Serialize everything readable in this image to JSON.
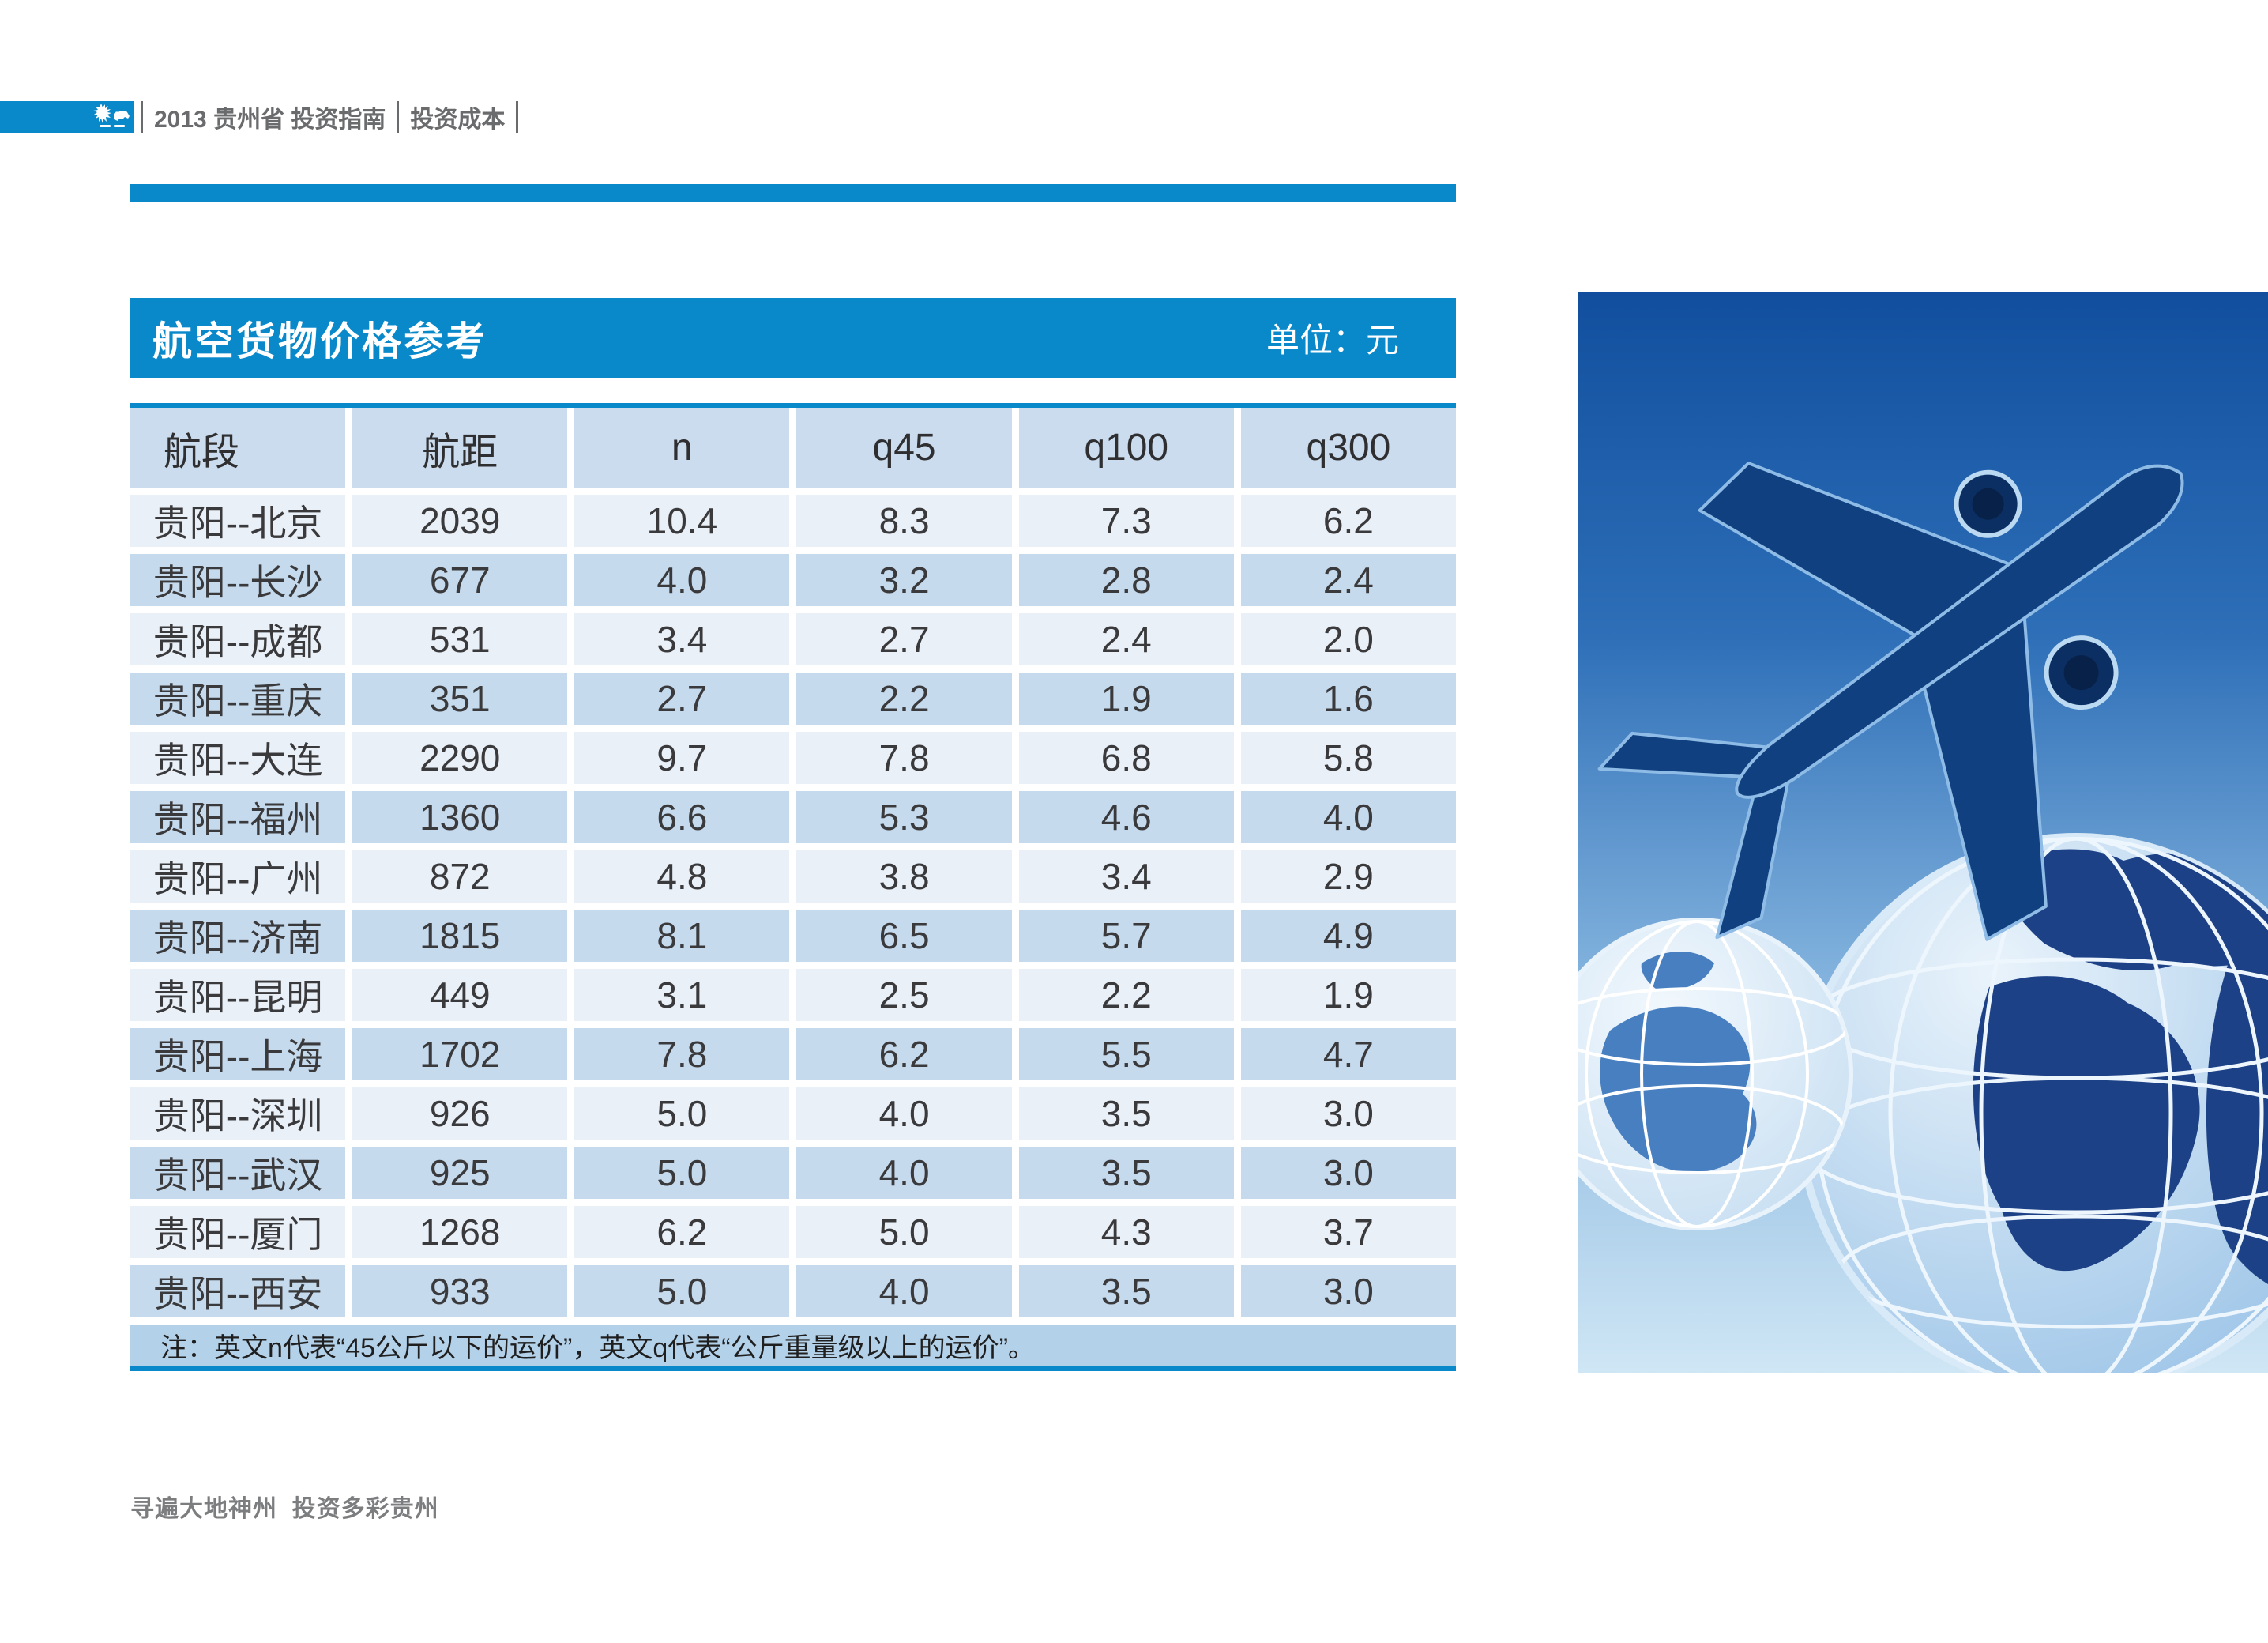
{
  "colors": {
    "brand": "#0988ca",
    "hdr-cell": "#cbdcee",
    "row-light": "#e9f0f8",
    "row-dark": "#c6daee",
    "note-bg": "#b4d1ea"
  },
  "header": {
    "left_label": "2013 贵州省 投资指南",
    "right_label": "投资成本"
  },
  "table": {
    "title": "航空货物价格参考",
    "unit": "单位：元",
    "columns": [
      "航段",
      "航距",
      "n",
      "q45",
      "q100",
      "q300"
    ],
    "rows": [
      [
        "贵阳--北京",
        "2039",
        "10.4",
        "8.3",
        "7.3",
        "6.2"
      ],
      [
        "贵阳--长沙",
        "677",
        "4.0",
        "3.2",
        "2.8",
        "2.4"
      ],
      [
        "贵阳--成都",
        "531",
        "3.4",
        "2.7",
        "2.4",
        "2.0"
      ],
      [
        "贵阳--重庆",
        "351",
        "2.7",
        "2.2",
        "1.9",
        "1.6"
      ],
      [
        "贵阳--大连",
        "2290",
        "9.7",
        "7.8",
        "6.8",
        "5.8"
      ],
      [
        "贵阳--福州",
        "1360",
        "6.6",
        "5.3",
        "4.6",
        "4.0"
      ],
      [
        "贵阳--广州",
        "872",
        "4.8",
        "3.8",
        "3.4",
        "2.9"
      ],
      [
        "贵阳--济南",
        "1815",
        "8.1",
        "6.5",
        "5.7",
        "4.9"
      ],
      [
        "贵阳--昆明",
        "449",
        "3.1",
        "2.5",
        "2.2",
        "1.9"
      ],
      [
        "贵阳--上海",
        "1702",
        "7.8",
        "6.2",
        "5.5",
        "4.7"
      ],
      [
        "贵阳--深圳",
        "926",
        "5.0",
        "4.0",
        "3.5",
        "3.0"
      ],
      [
        "贵阳--武汉",
        "925",
        "5.0",
        "4.0",
        "3.5",
        "3.0"
      ],
      [
        "贵阳--厦门",
        "1268",
        "6.2",
        "5.0",
        "4.3",
        "3.7"
      ],
      [
        "贵阳--西安",
        "933",
        "5.0",
        "4.0",
        "3.5",
        "3.0"
      ]
    ],
    "note": "注：英文n代表“45公斤以下的运价”，英文q代表“公斤重量级以上的运价”。"
  },
  "footer": {
    "slogan": "寻遍大地神州  投资多彩贵州"
  }
}
